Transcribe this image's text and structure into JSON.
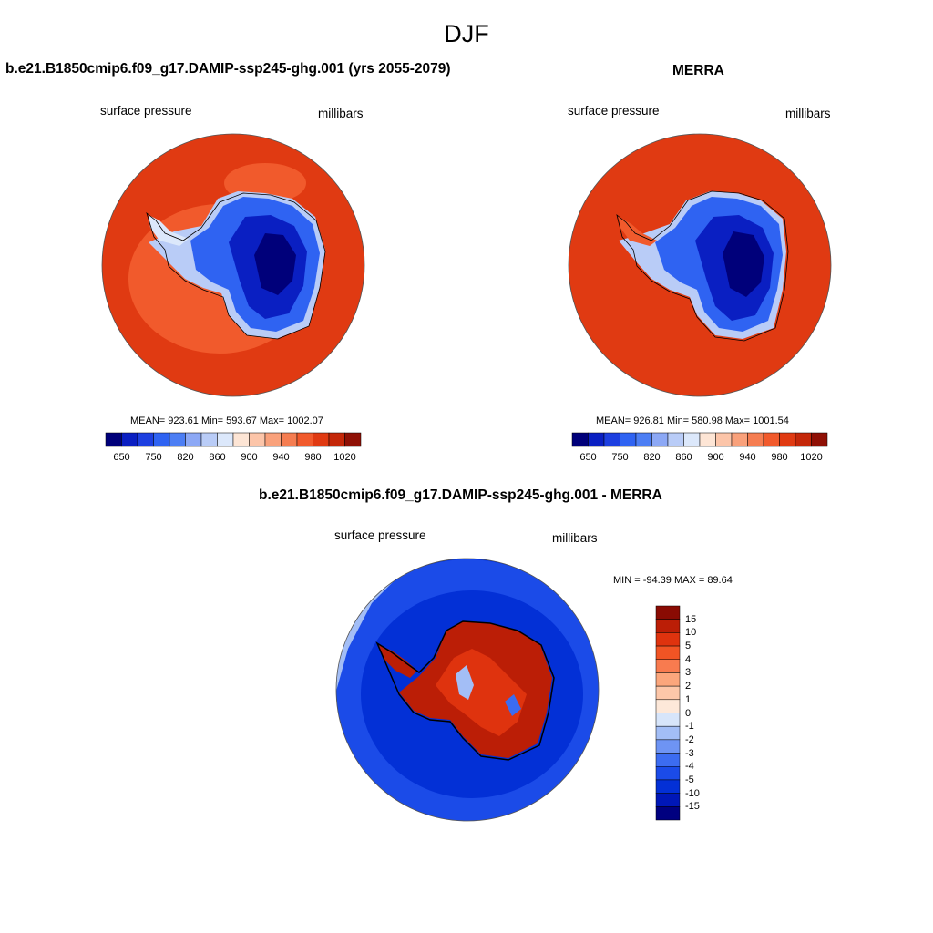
{
  "title": "DJF",
  "colors": {
    "abs_scale": [
      "#00007a",
      "#0a1fc2",
      "#1d3fe0",
      "#2f63f2",
      "#4c7ef4",
      "#8ca8f5",
      "#b9ccf7",
      "#dce8fb",
      "#fde5d5",
      "#fcc5a9",
      "#f9a17b",
      "#f57d51",
      "#f15a2c",
      "#e03a12",
      "#c42709",
      "#8f1005"
    ],
    "diff_scale": [
      "#000080",
      "#0017b8",
      "#0330d6",
      "#1b4be8",
      "#3c6cf1",
      "#6e94f4",
      "#a3bef6",
      "#d7e5fa",
      "#fde8d9",
      "#fdc7a9",
      "#fba67c",
      "#f87b4f",
      "#f15424",
      "#df330e",
      "#bb1e06",
      "#8a0b03"
    ],
    "ocean_abs": "#e03a12",
    "ocean_diff": "#0a3ae0"
  },
  "panels": {
    "model": {
      "title": "b.e21.B1850cmip6.f09_g17.DAMIP-ssp245-ghg.001 (yrs 2055-2079)",
      "variable": "surface pressure",
      "units": "millibars",
      "stats": "MEAN= 923.61  Min= 593.67  Max= 1002.07"
    },
    "obs": {
      "title": "MERRA",
      "variable": "surface pressure",
      "units": "millibars",
      "stats": "MEAN= 926.81  Min= 580.98  Max= 1001.54"
    },
    "diff": {
      "title": "b.e21.B1850cmip6.f09_g17.DAMIP-ssp245-ghg.001 - MERRA",
      "variable": "surface pressure",
      "units": "millibars",
      "stats": "MIN = -94.39 MAX =  89.64"
    }
  },
  "colorbar_abs": {
    "labels": [
      "650",
      "750",
      "820",
      "860",
      "900",
      "940",
      "980",
      "1020"
    ]
  },
  "colorbar_diff": {
    "labels": [
      "15",
      "10",
      "5",
      "4",
      "3",
      "2",
      "1",
      "0",
      "-1",
      "-2",
      "-3",
      "-4",
      "-5",
      "-10",
      "-15"
    ]
  }
}
